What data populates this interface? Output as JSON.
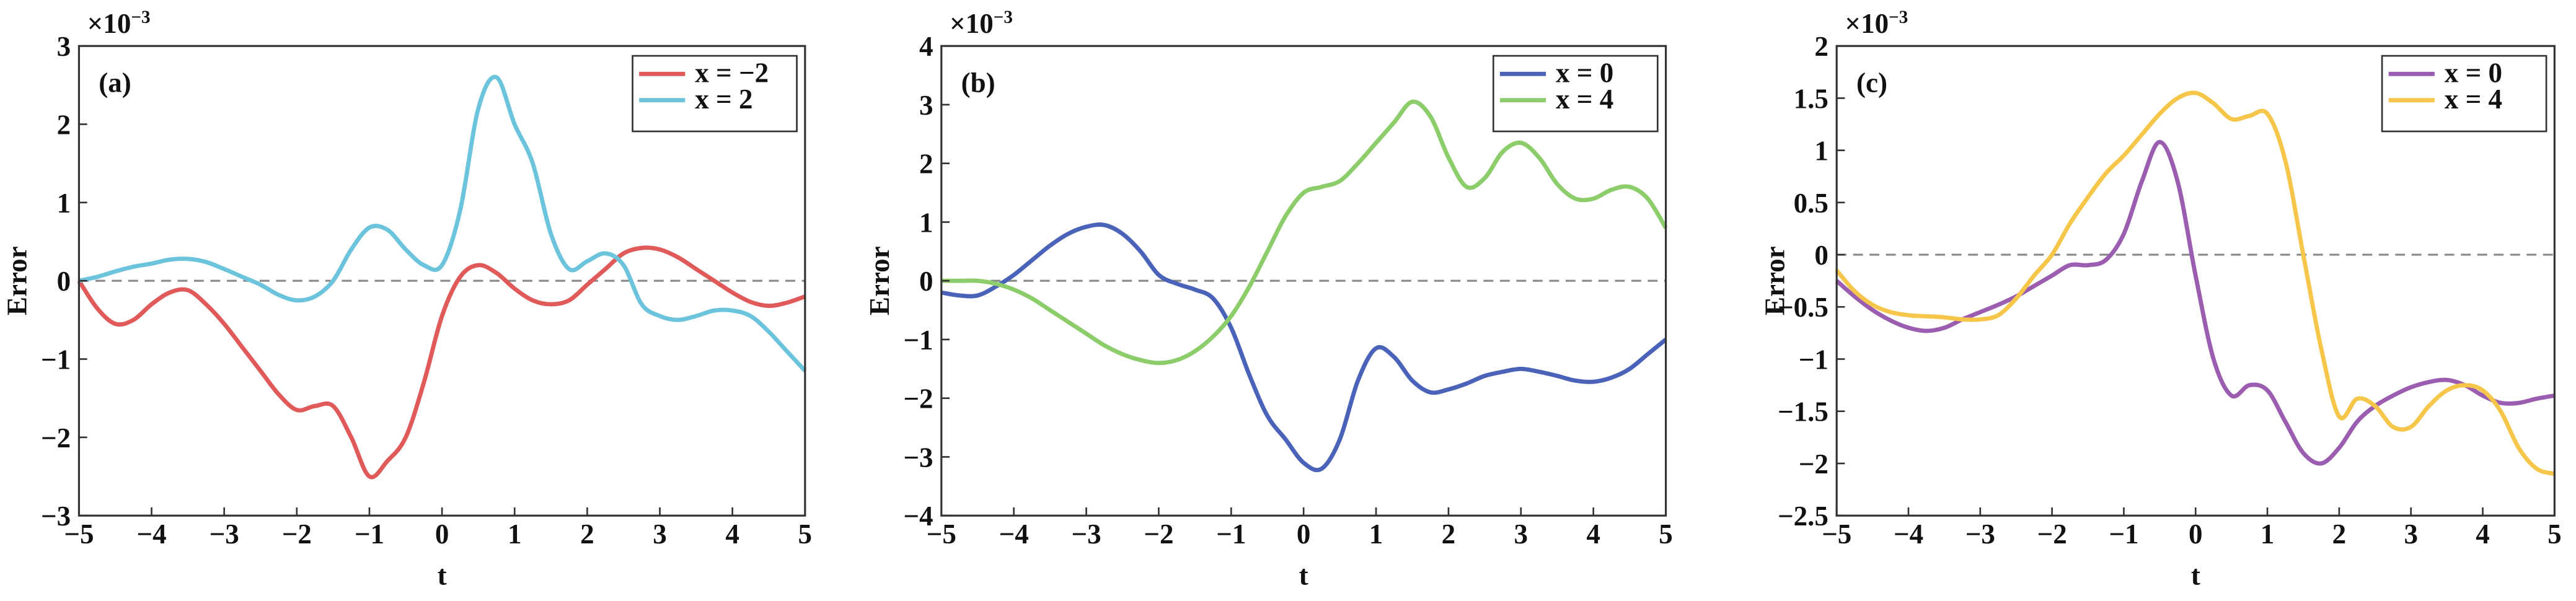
{
  "chart_data": [
    {
      "type": "line",
      "panel_label": "(a)",
      "xlabel": "t",
      "ylabel": "Error",
      "y_multiplier": "×10",
      "y_multiplier_exp": "−3",
      "x": [
        -5,
        -4.75,
        -4.5,
        -4.25,
        -4,
        -3.75,
        -3.5,
        -3.25,
        -3,
        -2.75,
        -2.5,
        -2.25,
        -2,
        -1.75,
        -1.5,
        -1.25,
        -1,
        -0.75,
        -0.5,
        -0.25,
        0,
        0.25,
        0.5,
        0.75,
        1,
        1.25,
        1.5,
        1.75,
        2,
        2.25,
        2.5,
        2.75,
        3,
        3.25,
        3.5,
        3.75,
        4,
        4.25,
        4.5,
        4.75,
        5
      ],
      "series": [
        {
          "name": "x = −2",
          "color": "#e05a5a",
          "values": [
            0,
            -0.35,
            -0.55,
            -0.5,
            -0.3,
            -0.15,
            -0.12,
            -0.3,
            -0.55,
            -0.85,
            -1.15,
            -1.45,
            -1.65,
            -1.6,
            -1.6,
            -2.0,
            -2.5,
            -2.3,
            -2.0,
            -1.3,
            -0.45,
            0.05,
            0.2,
            0.1,
            -0.1,
            -0.25,
            -0.3,
            -0.25,
            -0.05,
            0.15,
            0.35,
            0.42,
            0.4,
            0.3,
            0.15,
            0,
            -0.15,
            -0.27,
            -0.32,
            -0.28,
            -0.2
          ]
        },
        {
          "name": "x = 2",
          "color": "#6cc4dc",
          "values": [
            0,
            0.05,
            0.12,
            0.18,
            0.22,
            0.27,
            0.28,
            0.24,
            0.15,
            0.05,
            -0.05,
            -0.18,
            -0.25,
            -0.2,
            0.0,
            0.4,
            0.68,
            0.65,
            0.4,
            0.2,
            0.2,
            0.9,
            2.2,
            2.6,
            2.0,
            1.5,
            0.6,
            0.15,
            0.25,
            0.35,
            0.2,
            -0.3,
            -0.45,
            -0.5,
            -0.45,
            -0.38,
            -0.38,
            -0.45,
            -0.65,
            -0.9,
            -1.15
          ]
        }
      ],
      "xlim": [
        -5,
        5
      ],
      "ylim": [
        -3,
        3
      ],
      "xticks": [
        {
          "value": -5,
          "label": "−5"
        },
        {
          "value": -4,
          "label": "−4"
        },
        {
          "value": -3,
          "label": "−3"
        },
        {
          "value": -2,
          "label": "−2"
        },
        {
          "value": -1,
          "label": "−1"
        },
        0,
        1,
        2,
        3,
        4,
        5
      ],
      "yticks": [
        {
          "value": -3,
          "label": "−3"
        },
        {
          "value": -2,
          "label": "−2"
        },
        {
          "value": -1,
          "label": "−1"
        },
        0,
        1,
        2,
        3
      ],
      "reference_line": 0,
      "legend": "upper right"
    },
    {
      "type": "line",
      "panel_label": "(b)",
      "xlabel": "t",
      "ylabel": "Error",
      "y_multiplier": "×10",
      "y_multiplier_exp": "−3",
      "x": [
        -5,
        -4.75,
        -4.5,
        -4.25,
        -4,
        -3.75,
        -3.5,
        -3.25,
        -3,
        -2.75,
        -2.5,
        -2.25,
        -2,
        -1.75,
        -1.5,
        -1.25,
        -1,
        -0.75,
        -0.5,
        -0.25,
        0,
        0.25,
        0.5,
        0.75,
        1,
        1.25,
        1.5,
        1.75,
        2,
        2.25,
        2.5,
        2.75,
        3,
        3.25,
        3.5,
        3.75,
        4,
        4.25,
        4.5,
        4.75,
        5
      ],
      "series": [
        {
          "name": "x = 0",
          "color": "#4a63b8",
          "values": [
            -0.2,
            -0.25,
            -0.25,
            -0.1,
            0.1,
            0.35,
            0.6,
            0.8,
            0.92,
            0.95,
            0.8,
            0.5,
            0.1,
            -0.05,
            -0.15,
            -0.3,
            -0.8,
            -1.6,
            -2.3,
            -2.7,
            -3.1,
            -3.2,
            -2.7,
            -1.7,
            -1.15,
            -1.3,
            -1.7,
            -1.9,
            -1.85,
            -1.75,
            -1.62,
            -1.55,
            -1.5,
            -1.55,
            -1.62,
            -1.7,
            -1.72,
            -1.65,
            -1.5,
            -1.25,
            -1.0
          ]
        },
        {
          "name": "x = 4",
          "color": "#8ccc6a",
          "values": [
            0,
            0,
            0,
            -0.05,
            -0.15,
            -0.3,
            -0.5,
            -0.7,
            -0.9,
            -1.1,
            -1.25,
            -1.35,
            -1.4,
            -1.35,
            -1.2,
            -0.95,
            -0.6,
            -0.1,
            0.5,
            1.1,
            1.5,
            1.6,
            1.7,
            2.0,
            2.35,
            2.7,
            3.05,
            2.8,
            2.1,
            1.6,
            1.75,
            2.2,
            2.35,
            2.1,
            1.65,
            1.4,
            1.4,
            1.55,
            1.6,
            1.4,
            0.9
          ]
        }
      ],
      "xlim": [
        -5,
        5
      ],
      "ylim": [
        -4,
        4
      ],
      "xticks": [
        {
          "value": -5,
          "label": "−5"
        },
        {
          "value": -4,
          "label": "−4"
        },
        {
          "value": -3,
          "label": "−3"
        },
        {
          "value": -2,
          "label": "−2"
        },
        {
          "value": -1,
          "label": "−1"
        },
        0,
        1,
        2,
        3,
        4,
        5
      ],
      "yticks": [
        {
          "value": -4,
          "label": "−4"
        },
        {
          "value": -3,
          "label": "−3"
        },
        {
          "value": -2,
          "label": "−2"
        },
        {
          "value": -1,
          "label": "−1"
        },
        0,
        1,
        2,
        3,
        4
      ],
      "reference_line": 0,
      "legend": "upper right"
    },
    {
      "type": "line",
      "panel_label": "(c)",
      "xlabel": "t",
      "ylabel": "Error",
      "y_multiplier": "×10",
      "y_multiplier_exp": "−3",
      "x": [
        -5,
        -4.75,
        -4.5,
        -4.25,
        -4,
        -3.75,
        -3.5,
        -3.25,
        -3,
        -2.75,
        -2.5,
        -2.25,
        -2,
        -1.75,
        -1.5,
        -1.25,
        -1,
        -0.75,
        -0.5,
        -0.25,
        0,
        0.25,
        0.5,
        0.75,
        1,
        1.25,
        1.5,
        1.75,
        2,
        2.25,
        2.5,
        2.75,
        3,
        3.25,
        3.5,
        3.75,
        4,
        4.25,
        4.5,
        4.75,
        5
      ],
      "series": [
        {
          "name": "x = 0",
          "color": "#9a5db0",
          "values": [
            -0.25,
            -0.4,
            -0.53,
            -0.63,
            -0.7,
            -0.73,
            -0.7,
            -0.62,
            -0.55,
            -0.48,
            -0.4,
            -0.3,
            -0.2,
            -0.1,
            -0.1,
            -0.05,
            0.2,
            0.7,
            1.08,
            0.7,
            -0.2,
            -1.0,
            -1.35,
            -1.25,
            -1.3,
            -1.6,
            -1.9,
            -2.0,
            -1.85,
            -1.6,
            -1.45,
            -1.35,
            -1.27,
            -1.22,
            -1.2,
            -1.25,
            -1.35,
            -1.42,
            -1.42,
            -1.38,
            -1.35
          ]
        },
        {
          "name": "x = 4",
          "color": "#f5c64a",
          "values": [
            -0.15,
            -0.35,
            -0.48,
            -0.55,
            -0.58,
            -0.59,
            -0.6,
            -0.62,
            -0.62,
            -0.58,
            -0.42,
            -0.2,
            0.0,
            0.3,
            0.55,
            0.78,
            0.95,
            1.15,
            1.35,
            1.5,
            1.55,
            1.45,
            1.3,
            1.33,
            1.35,
            0.9,
            0.0,
            -0.9,
            -1.55,
            -1.38,
            -1.45,
            -1.65,
            -1.65,
            -1.45,
            -1.3,
            -1.25,
            -1.3,
            -1.5,
            -1.85,
            -2.05,
            -2.1
          ]
        }
      ],
      "xlim": [
        -5,
        5
      ],
      "ylim": [
        -2.5,
        2
      ],
      "xticks": [
        {
          "value": -5,
          "label": "−5"
        },
        {
          "value": -4,
          "label": "−4"
        },
        {
          "value": -3,
          "label": "−3"
        },
        {
          "value": -2,
          "label": "−2"
        },
        {
          "value": -1,
          "label": "−1"
        },
        0,
        1,
        2,
        3,
        4,
        5
      ],
      "yticks": [
        {
          "value": -2.5,
          "label": "−2.5"
        },
        {
          "value": -2,
          "label": "−2"
        },
        {
          "value": -1.5,
          "label": "−1.5"
        },
        {
          "value": -1,
          "label": "−1"
        },
        {
          "value": -0.5,
          "label": "−0.5"
        },
        0,
        0.5,
        1,
        1.5,
        2
      ],
      "reference_line": 0,
      "legend": "upper right"
    }
  ]
}
